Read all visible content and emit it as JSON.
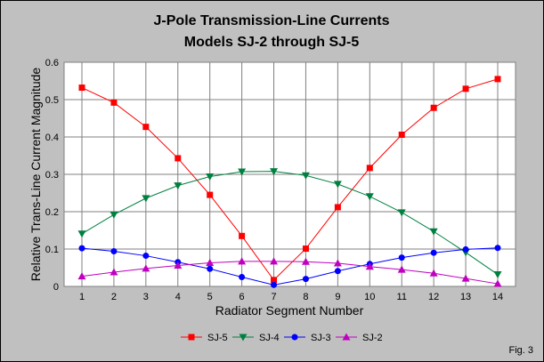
{
  "figure_label": "Fig. 3",
  "chart_data": {
    "type": "line",
    "title": "J-Pole Transmission-Line Currents",
    "subtitle": "Models SJ-2 through SJ-5",
    "xlabel": "Radiator Segment Number",
    "ylabel": "Relative Trans-Line Current Magnitude",
    "x": [
      1,
      2,
      3,
      4,
      5,
      6,
      7,
      8,
      9,
      10,
      11,
      12,
      13,
      14
    ],
    "xlim": [
      1,
      14
    ],
    "ylim": [
      0,
      0.6
    ],
    "yticks": [
      "0",
      "0.1",
      "0.2",
      "0.3",
      "0.4",
      "0.5",
      "0.6"
    ],
    "grid": true,
    "plot_background": "#ffffff",
    "grid_color": "#808080",
    "legend_position": "bottom",
    "series": [
      {
        "name": "SJ-5",
        "color": "#ff0000",
        "marker": "square",
        "values": [
          0.532,
          0.492,
          0.427,
          0.343,
          0.245,
          0.135,
          0.017,
          0.101,
          0.212,
          0.317,
          0.406,
          0.478,
          0.529,
          0.555
        ]
      },
      {
        "name": "SJ-4",
        "color": "#008040",
        "marker": "triangle-down",
        "values": [
          0.141,
          0.192,
          0.236,
          0.27,
          0.294,
          0.307,
          0.308,
          0.297,
          0.274,
          0.241,
          0.198,
          0.147,
          0.091,
          0.032
        ]
      },
      {
        "name": "SJ-3",
        "color": "#0000ff",
        "marker": "circle",
        "values": [
          0.102,
          0.094,
          0.082,
          0.065,
          0.047,
          0.025,
          0.004,
          0.02,
          0.041,
          0.06,
          0.077,
          0.09,
          0.099,
          0.103
        ]
      },
      {
        "name": "SJ-2",
        "color": "#c000c0",
        "marker": "triangle-up",
        "values": [
          0.027,
          0.038,
          0.048,
          0.056,
          0.063,
          0.067,
          0.067,
          0.066,
          0.062,
          0.053,
          0.045,
          0.035,
          0.021,
          0.007
        ]
      }
    ]
  }
}
